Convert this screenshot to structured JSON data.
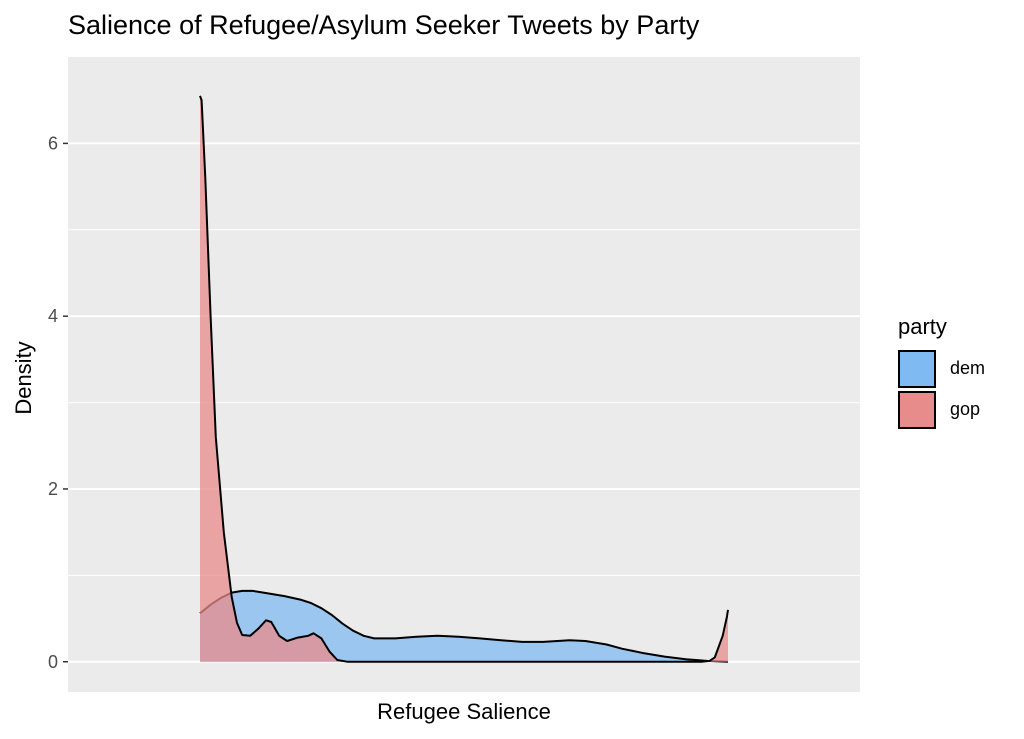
{
  "chart_data": {
    "type": "area",
    "title": "Salience of Refugee/Asylum Seeker Tweets by Party",
    "xlabel": "Refugee Salience",
    "ylabel": "Density",
    "x_ticks_shown": false,
    "xlim": [
      -0.25,
      1.25
    ],
    "ylim": [
      -0.35,
      7.0
    ],
    "yticks": [
      0,
      2,
      4,
      6
    ],
    "grid": true,
    "legend": {
      "title": "party",
      "placement": "right"
    },
    "series": [
      {
        "name": "dem",
        "color": "#7fbaf2",
        "points": [
          [
            0.0,
            0.56
          ],
          [
            0.02,
            0.66
          ],
          [
            0.04,
            0.74
          ],
          [
            0.06,
            0.8
          ],
          [
            0.08,
            0.82
          ],
          [
            0.1,
            0.82
          ],
          [
            0.12,
            0.8
          ],
          [
            0.16,
            0.76
          ],
          [
            0.19,
            0.72
          ],
          [
            0.21,
            0.68
          ],
          [
            0.23,
            0.62
          ],
          [
            0.25,
            0.54
          ],
          [
            0.27,
            0.44
          ],
          [
            0.29,
            0.36
          ],
          [
            0.31,
            0.3
          ],
          [
            0.33,
            0.27
          ],
          [
            0.37,
            0.27
          ],
          [
            0.41,
            0.29
          ],
          [
            0.45,
            0.3
          ],
          [
            0.49,
            0.29
          ],
          [
            0.53,
            0.27
          ],
          [
            0.57,
            0.25
          ],
          [
            0.61,
            0.23
          ],
          [
            0.65,
            0.23
          ],
          [
            0.7,
            0.25
          ],
          [
            0.73,
            0.24
          ],
          [
            0.77,
            0.2
          ],
          [
            0.8,
            0.15
          ],
          [
            0.84,
            0.1
          ],
          [
            0.88,
            0.06
          ],
          [
            0.92,
            0.03
          ],
          [
            0.96,
            0.01
          ],
          [
            1.0,
            0.0
          ]
        ]
      },
      {
        "name": "gop",
        "color": "#e88b8b",
        "points": [
          [
            0.0,
            6.55
          ],
          [
            0.003,
            6.5
          ],
          [
            0.01,
            5.6
          ],
          [
            0.02,
            4.0
          ],
          [
            0.03,
            2.6
          ],
          [
            0.045,
            1.5
          ],
          [
            0.06,
            0.75
          ],
          [
            0.07,
            0.45
          ],
          [
            0.08,
            0.31
          ],
          [
            0.095,
            0.3
          ],
          [
            0.11,
            0.38
          ],
          [
            0.125,
            0.48
          ],
          [
            0.135,
            0.46
          ],
          [
            0.15,
            0.3
          ],
          [
            0.165,
            0.24
          ],
          [
            0.185,
            0.28
          ],
          [
            0.205,
            0.3
          ],
          [
            0.215,
            0.33
          ],
          [
            0.23,
            0.27
          ],
          [
            0.245,
            0.12
          ],
          [
            0.26,
            0.02
          ],
          [
            0.28,
            0.0
          ],
          [
            0.95,
            0.0
          ],
          [
            0.965,
            0.01
          ],
          [
            0.975,
            0.05
          ],
          [
            0.99,
            0.3
          ],
          [
            0.998,
            0.52
          ],
          [
            1.0,
            0.6
          ]
        ]
      }
    ]
  }
}
